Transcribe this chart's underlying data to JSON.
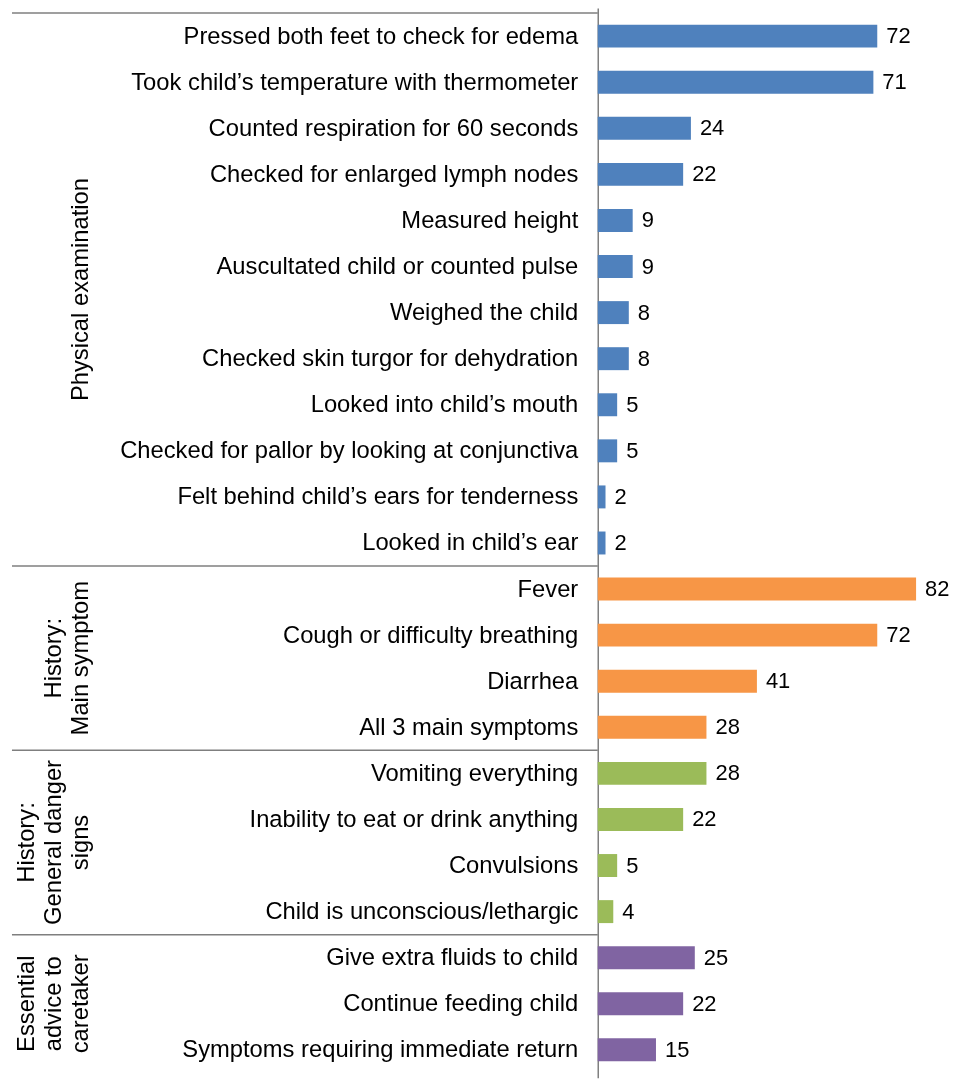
{
  "chart_data": {
    "type": "bar",
    "orientation": "horizontal",
    "data_labels": true,
    "tick_labels": "y",
    "categories": [
      "Pressed both feet to check for edema",
      "Took child’s temperature with thermometer",
      "Counted respiration for 60 seconds",
      "Checked for enlarged lymph nodes",
      "Measured height",
      "Auscultated child or counted pulse",
      "Weighed the child",
      "Checked skin turgor for dehydration",
      "Looked into child’s mouth",
      "Checked for pallor by looking at conjunctiva",
      "Felt behind child’s ears for tenderness",
      "Looked in child’s ear",
      "Fever",
      "Cough or difficulty breathing",
      "Diarrhea",
      "All 3 main symptoms",
      "Vomiting everything",
      "Inability to eat or drink anything",
      "Convulsions",
      "Child is unconscious/lethargic",
      "Give extra fluids to child",
      "Continue feeding child",
      "Symptoms requiring immediate return"
    ],
    "series": [
      {
        "color": "#4f81bd",
        "values": [
          72,
          71,
          24,
          22,
          9,
          9,
          8,
          8,
          5,
          5,
          2,
          2,
          null,
          null,
          null,
          null,
          null,
          null,
          null,
          null,
          null,
          null,
          null
        ]
      },
      {
        "color": "#f79646",
        "values": [
          null,
          null,
          null,
          null,
          null,
          null,
          null,
          null,
          null,
          null,
          null,
          null,
          82,
          72,
          41,
          28,
          null,
          null,
          null,
          null,
          null,
          null,
          null
        ]
      },
      {
        "color": "#9bbb59",
        "values": [
          null,
          null,
          null,
          null,
          null,
          null,
          null,
          null,
          null,
          null,
          null,
          null,
          null,
          null,
          null,
          null,
          28,
          22,
          5,
          4,
          null,
          null,
          null
        ]
      },
      {
        "color": "#8064a2",
        "values": [
          null,
          null,
          null,
          null,
          null,
          null,
          null,
          null,
          null,
          null,
          null,
          null,
          null,
          null,
          null,
          null,
          null,
          null,
          null,
          null,
          25,
          22,
          15
        ]
      }
    ],
    "annotations": [
      "Physical examination",
      "History:\nMain symptom",
      "History:\nGeneral danger\nsigns",
      "Essential\nadvice to\ncaretaker"
    ]
  }
}
